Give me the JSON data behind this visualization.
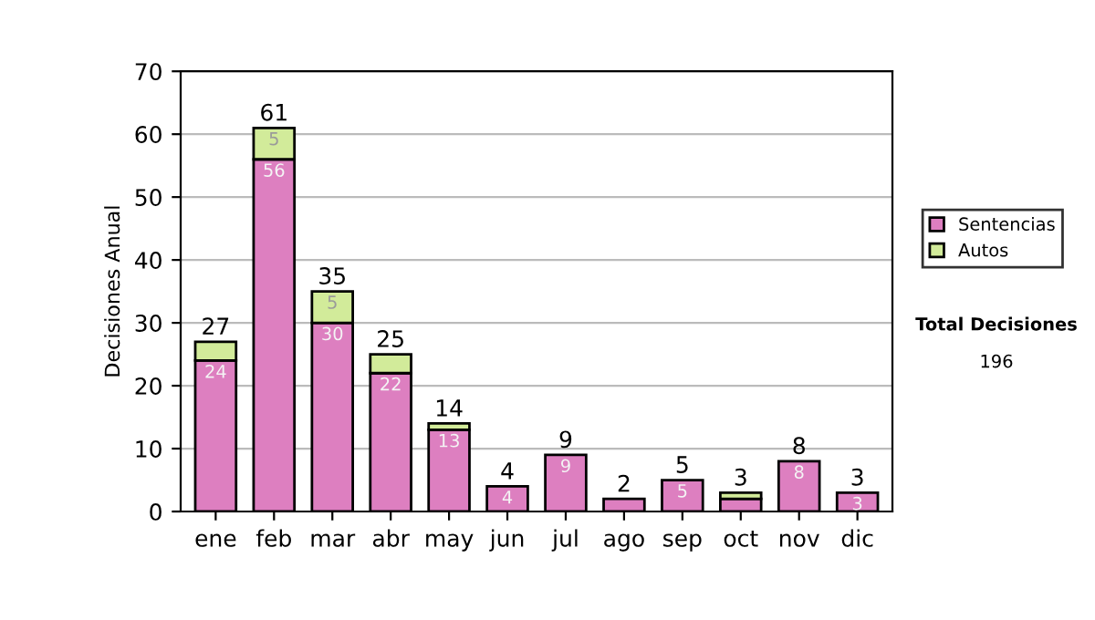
{
  "chart_data": {
    "type": "bar",
    "stacked": true,
    "ylabel": "Decisiones Anual",
    "categories": [
      "ene",
      "feb",
      "mar",
      "abr",
      "may",
      "jun",
      "jul",
      "ago",
      "sep",
      "oct",
      "nov",
      "dic"
    ],
    "series": [
      {
        "name": "Sentencias",
        "color": "#dd7fc0",
        "values": [
          24,
          56,
          30,
          22,
          13,
          4,
          9,
          2,
          5,
          2,
          8,
          3
        ],
        "value_labels": [
          "24",
          "56",
          "30",
          "22",
          "13",
          "4",
          "9",
          null,
          "5",
          null,
          "8",
          "3"
        ]
      },
      {
        "name": "Autos",
        "color": "#d2eb9a",
        "values": [
          3,
          5,
          5,
          3,
          1,
          null,
          null,
          null,
          null,
          1,
          null,
          null
        ],
        "value_labels": [
          null,
          "5",
          "5",
          null,
          null,
          null,
          null,
          null,
          null,
          null,
          null,
          null
        ]
      }
    ],
    "totals": [
      "27",
      "61",
      "35",
      "25",
      "14",
      "4",
      "9",
      "2",
      "5",
      "3",
      "8",
      "3"
    ],
    "ylim": [
      0,
      70
    ],
    "yticks": [
      0,
      10,
      20,
      30,
      40,
      50,
      60,
      70
    ],
    "grid": "y",
    "legend": "right",
    "annotations": [
      "Total Decisiones",
      "196"
    ]
  }
}
